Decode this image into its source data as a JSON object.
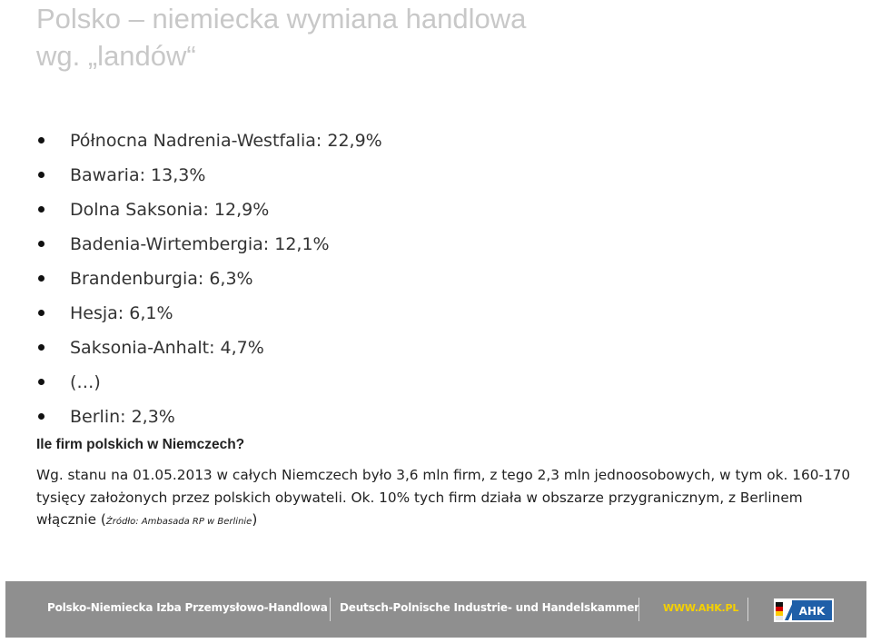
{
  "title": {
    "line1": "Polsko – niemiecka wymiana handlowa",
    "line2": "wg. „landów“"
  },
  "bullets": [
    "Północna Nadrenia-Westfalia: 22,9%",
    "Bawaria: 13,3%",
    "Dolna Saksonia: 12,9%",
    "Badenia-Wirtembergia: 12,1%",
    "Brandenburgia: 6,3%",
    "Hesja: 6,1%",
    "Saksonia-Anhalt: 4,7%",
    "(…)",
    "Berlin: 2,3%"
  ],
  "question": "Ile firm polskich w Niemczech?",
  "paragraph": {
    "text": "Wg. stanu na 01.05.2013 w całych Niemczech było 3,6 mln firm, z tego 2,3 mln jednoosobowych, w tym ok. 160-170 tysięcy założonych przez polskich obywateli. Ok. 10% tych firm działa w obszarze przygranicznym, z Berlinem włącznie (",
    "source": "Źródło: Ambasada RP w Berlinie",
    "closing": ")"
  },
  "footer": {
    "name_pl": "Polsko-Niemiecka Izba Przemysłowo-Handlowa",
    "name_de": "Deutsch-Polnische Industrie- und Handelskammer",
    "website": "WWW.AHK.PL",
    "logo_text": "AHK",
    "colors": {
      "background": "#8f8f8f",
      "website": "#f5d000",
      "logo_blue": "#1f5fa8"
    }
  }
}
